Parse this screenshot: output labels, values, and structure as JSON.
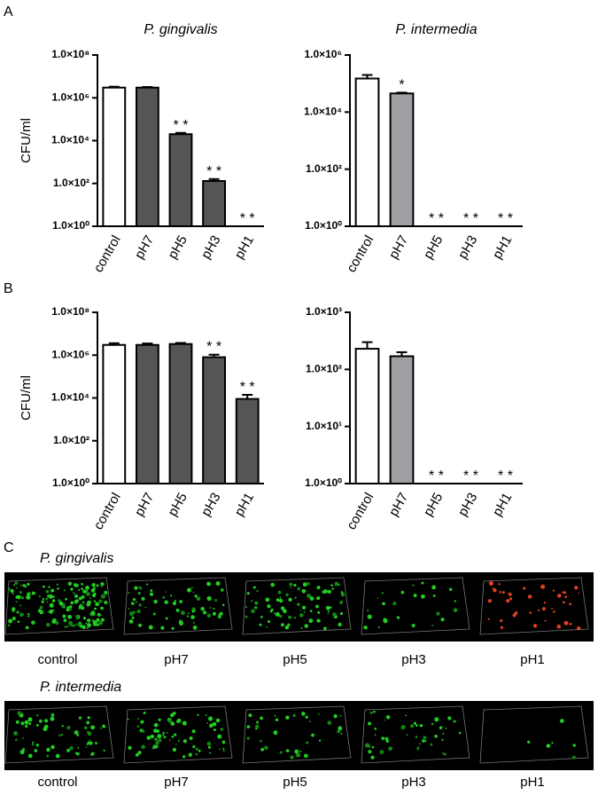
{
  "panel_labels": [
    "A",
    "B",
    "C"
  ],
  "chart_data": [
    {
      "type": "bar",
      "title": "P. gingivalis",
      "ylabel": "CFU/ml",
      "log_scale": true,
      "categories": [
        "control",
        "pH7",
        "pH5",
        "pH3",
        "pH1"
      ],
      "values": [
        3000000,
        3000000,
        20000,
        130,
        null
      ],
      "errors": [
        300000,
        200000,
        3000,
        30,
        null
      ],
      "colors": [
        "#ffffff",
        "#555555",
        "#555555",
        "#555555",
        "#555555"
      ],
      "annotations": [
        null,
        null,
        "* *",
        "* *",
        "* *"
      ],
      "ylim": [
        1,
        100000000
      ],
      "yticks": [
        {
          "value": 1,
          "label": "1.0×10⁰"
        },
        {
          "value": 100,
          "label": "1.0×10²"
        },
        {
          "value": 10000,
          "label": "1.0×10⁴"
        },
        {
          "value": 1000000,
          "label": "1.0×10⁶"
        },
        {
          "value": 100000000,
          "label": "1.0×10⁸"
        }
      ]
    },
    {
      "type": "bar",
      "title": "P. intermedia",
      "log_scale": true,
      "categories": [
        "control",
        "pH7",
        "pH5",
        "pH3",
        "pH1"
      ],
      "values": [
        150000,
        45000,
        null,
        null,
        null
      ],
      "errors": [
        50000,
        3000,
        null,
        null,
        null
      ],
      "colors": [
        "#ffffff",
        "#a0a0a4",
        "#a0a0a4",
        "#a0a0a4",
        "#a0a0a4"
      ],
      "annotations": [
        null,
        "*",
        "* *",
        "* *",
        "* *"
      ],
      "ylim": [
        1,
        1000000
      ],
      "yticks": [
        {
          "value": 1,
          "label": "1.0×10⁰"
        },
        {
          "value": 100,
          "label": "1.0×10²"
        },
        {
          "value": 10000,
          "label": "1.0×10⁴"
        },
        {
          "value": 1000000,
          "label": "1.0×10⁶"
        }
      ]
    },
    {
      "type": "bar",
      "ylabel": "CFU/ml",
      "log_scale": true,
      "categories": [
        "control",
        "pH7",
        "pH5",
        "pH3",
        "pH1"
      ],
      "values": [
        3000000,
        3000000,
        3300000,
        800000,
        9000
      ],
      "errors": [
        600000,
        500000,
        400000,
        250000,
        5000
      ],
      "colors": [
        "#ffffff",
        "#555555",
        "#555555",
        "#555555",
        "#555555"
      ],
      "annotations": [
        null,
        null,
        null,
        "* *",
        "* *"
      ],
      "ylim": [
        1,
        100000000
      ],
      "yticks": [
        {
          "value": 1,
          "label": "1.0×10⁰"
        },
        {
          "value": 100,
          "label": "1.0×10²"
        },
        {
          "value": 10000,
          "label": "1.0×10⁴"
        },
        {
          "value": 1000000,
          "label": "1.0×10⁶"
        },
        {
          "value": 100000000,
          "label": "1.0×10⁸"
        }
      ]
    },
    {
      "type": "bar",
      "log_scale": true,
      "categories": [
        "control",
        "pH7",
        "pH5",
        "pH3",
        "pH1"
      ],
      "values": [
        230,
        170,
        null,
        null,
        null
      ],
      "errors": [
        70,
        30,
        null,
        null,
        null
      ],
      "colors": [
        "#ffffff",
        "#a0a0a4",
        "#a0a0a4",
        "#a0a0a4",
        "#a0a0a4"
      ],
      "annotations": [
        null,
        null,
        "* *",
        "* *",
        "* *"
      ],
      "ylim": [
        1,
        1000
      ],
      "yticks": [
        {
          "value": 1,
          "label": "1.0×10⁰"
        },
        {
          "value": 10,
          "label": "1.0×10¹"
        },
        {
          "value": 100,
          "label": "1.0×10²"
        },
        {
          "value": 1000,
          "label": "1.0×10³"
        }
      ]
    }
  ],
  "image_rows": [
    {
      "title": "P. gingivalis",
      "labels": [
        "control",
        "pH7",
        "pH5",
        "pH3",
        "pH1"
      ]
    },
    {
      "title": "P. intermedia",
      "labels": [
        "control",
        "pH7",
        "pH5",
        "pH3",
        "pH1"
      ]
    }
  ]
}
